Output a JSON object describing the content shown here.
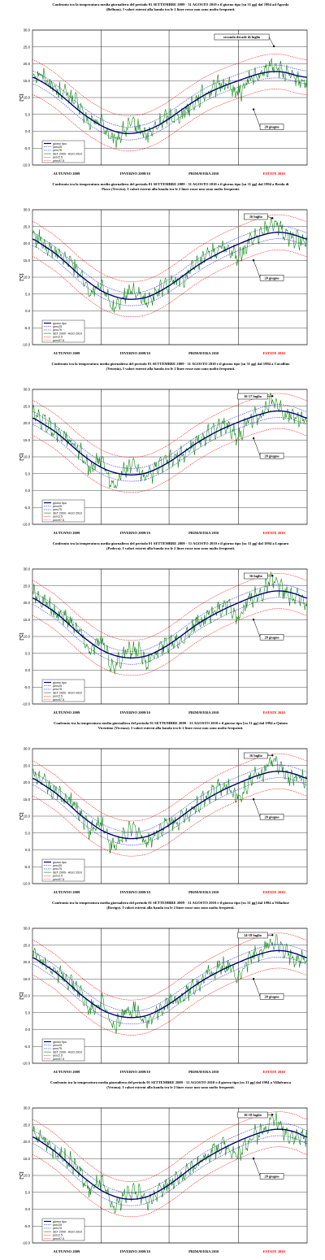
{
  "colors": {
    "giorno_tipo": "#000080",
    "perc25_75": "#3333ff",
    "set": "#008000",
    "perc2_97": "#ff0000",
    "estate_label": "#ff0000",
    "grid": "#000000"
  },
  "chart_data": [
    {
      "type": "line",
      "title_lines": [
        "Confronto tra la temperatura media giornaliera del periodo 01 SETTEMBRE 2009 - 31 AGOSTO 2010 e il giorno tipo [su 31 gg] dal 1994 ad Agordo",
        "(Belluno). I valori esterni alla banda tra le 2 linee rosse non sono molto frequenti."
      ],
      "ylabel": "[°C]",
      "ylim": [
        -10,
        30
      ],
      "yticks": [
        "30.0",
        "25.0",
        "20.0",
        "15.0",
        "10.0",
        "5.0",
        "0.0",
        "-5.0",
        "-10.0"
      ],
      "ytick_values": [
        30,
        25,
        20,
        15,
        10,
        5,
        0,
        -5,
        -10
      ],
      "seasons": [
        "AUTUNNO 2009",
        "INVERNO 2009/10",
        "PRIMAVERA 2010",
        "ESTATE 2010"
      ],
      "legend": [
        "giorno tipo",
        "perc25",
        "perc75",
        "SET 2009 - AGO 2010",
        "perc2.5",
        "perc97.5"
      ],
      "annotations": [
        {
          "text": "seconda decade di luglio",
          "day": 320,
          "value": 25.2
        },
        {
          "text": "20 giugno",
          "day": 293,
          "value": 6.5
        }
      ],
      "series": [
        {
          "name": "giorno tipo",
          "values": [
            16.0,
            14.3,
            12.0,
            9.2,
            6.3,
            3.8,
            1.7,
            0.2,
            -0.6,
            -0.5,
            0.3,
            1.8,
            3.9,
            6.3,
            8.6,
            10.7,
            12.4,
            13.8,
            15.0,
            16.2,
            17.2,
            17.7,
            17.5,
            16.6,
            16.0
          ]
        },
        {
          "name": "SET 2009 - AGO 2010",
          "values": [
            17.0,
            16.2,
            12.5,
            11.0,
            7.6,
            2.3,
            3.1,
            -3.0,
            0.2,
            1.8,
            -1.2,
            2.0,
            4.5,
            5.1,
            8.5,
            11.0,
            13.2,
            14.0,
            11.2,
            15.6,
            16.5,
            19.8,
            17.0,
            15.4,
            14.7
          ]
        }
      ]
    },
    {
      "type": "line",
      "title_lines": [
        "Confronto tra la temperatura media giornaliera del periodo 01 SETTEMBRE 2009 - 31 AGOSTO 2010 e il giorno tipo [su 31 gg] dal 1994 a Breda di",
        "Piave (Treviso). I valori esterni alla banda tra le 2 linee rosse non sono molto frequenti."
      ],
      "ylabel": "[°C]",
      "ylim": [
        -10,
        30
      ],
      "yticks": [
        "30.0",
        "25.0",
        "20.0",
        "15.0",
        "10.0",
        "5.0",
        "0.0",
        "-5.0",
        "-10.0"
      ],
      "ytick_values": [
        30,
        25,
        20,
        15,
        10,
        5,
        0,
        -5,
        -10
      ],
      "seasons": [
        "AUTUNNO 2009",
        "INVERNO 2009/10",
        "PRIMAVERA 2010",
        "ESTATE 2010"
      ],
      "legend": [
        "giorno tipo",
        "perc25",
        "perc75",
        "SET 2009 - AGO 2010",
        "perc2.5",
        "perc97.5"
      ],
      "annotations": [
        {
          "text": "16 luglio",
          "day": 318,
          "value": 27.5
        },
        {
          "text": "20 giugno",
          "day": 293,
          "value": 15.0
        }
      ],
      "series": [
        {
          "name": "giorno tipo",
          "values": [
            21.3,
            19.3,
            17.0,
            14.1,
            11.0,
            8.3,
            6.0,
            4.5,
            3.6,
            3.5,
            4.1,
            5.6,
            7.6,
            10.0,
            12.5,
            14.7,
            16.6,
            18.3,
            19.8,
            21.2,
            22.4,
            23.2,
            23.2,
            22.4,
            21.3
          ]
        },
        {
          "name": "SET 2009 - AGO 2010",
          "values": [
            22.5,
            20.0,
            17.1,
            15.0,
            12.0,
            6.0,
            8.2,
            1.0,
            4.5,
            6.0,
            2.6,
            5.7,
            8.0,
            9.2,
            12.3,
            15.2,
            17.6,
            18.5,
            15.8,
            20.8,
            22.5,
            26.3,
            22.8,
            21.3,
            20.9
          ]
        }
      ]
    },
    {
      "type": "line",
      "title_lines": [
        "Confronto tra la temperatura media giornaliera del periodo 01 SETTEMBRE 2009 - 31 AGOSTO 2010 e il giorno tipo [su 31 gg] dal 1994 a Cavallino",
        "(Venezia). I valori esterni alla banda tra le 2 linee rosse non sono molto frequenti."
      ],
      "ylabel": "[°C]",
      "ylim": [
        -10,
        30
      ],
      "yticks": [
        "30.0",
        "25.0",
        "20.0",
        "15.0",
        "10.0",
        "5.0",
        "0.0",
        "-5.0",
        "-10.0"
      ],
      "ytick_values": [
        30,
        25,
        20,
        15,
        10,
        5,
        0,
        -5,
        -10
      ],
      "seasons": [
        "AUTUNNO 2009",
        "INVERNO 2009/10",
        "PRIMAVERA 2010",
        "ESTATE 2010"
      ],
      "legend": [
        "giorno tipo",
        "perc25",
        "perc75",
        "SET 2009 - AGO 2010",
        "perc2.5",
        "perc97.5"
      ],
      "annotations": [
        {
          "text": "16-17 luglio",
          "day": 318,
          "value": 28.0
        },
        {
          "text": "20 giugno",
          "day": 293,
          "value": 15.5
        }
      ],
      "series": [
        {
          "name": "giorno tipo",
          "values": [
            21.5,
            19.6,
            17.4,
            14.6,
            11.6,
            9.0,
            6.9,
            5.5,
            4.8,
            4.7,
            5.3,
            6.7,
            8.6,
            10.9,
            13.3,
            15.4,
            17.3,
            18.9,
            20.3,
            21.6,
            22.7,
            23.5,
            23.5,
            22.7,
            21.5
          ]
        },
        {
          "name": "SET 2009 - AGO 2010",
          "values": [
            22.7,
            20.3,
            17.5,
            15.4,
            12.5,
            6.8,
            9.1,
            2.0,
            5.7,
            7.2,
            3.8,
            6.9,
            9.0,
            10.2,
            13.2,
            16.0,
            18.3,
            19.1,
            16.3,
            21.2,
            22.8,
            26.6,
            23.1,
            21.6,
            21.1
          ]
        }
      ]
    },
    {
      "type": "line",
      "title_lines": [
        "Confronto tra la temperatura media giornaliera del periodo 01 SETTEMBRE 2009 - 31 AGOSTO 2010 e il giorno tipo [su 31 gg] dal 1994 a Legnaro",
        "(Padova). I valori esterni alla banda tra le 2 linee rosse non sono molto frequenti."
      ],
      "ylabel": "[°C]",
      "ylim": [
        -10,
        30
      ],
      "yticks": [
        "30.0",
        "25.0",
        "20.0",
        "15.0",
        "10.0",
        "5.0",
        "0.0",
        "-5.0",
        "-10.0"
      ],
      "ytick_values": [
        30,
        25,
        20,
        15,
        10,
        5,
        0,
        -5,
        -10
      ],
      "seasons": [
        "AUTUNNO 2009",
        "INVERNO 2009/10",
        "PRIMAVERA 2010",
        "ESTATE 2010"
      ],
      "legend": [
        "giorno tipo",
        "perc25",
        "perc75",
        "SET 2009 - AGO 2010",
        "perc2.5",
        "perc97.5"
      ],
      "annotations": [
        {
          "text": "16 luglio",
          "day": 318,
          "value": 28.0
        },
        {
          "text": "20 giugno",
          "day": 293,
          "value": 15.0
        }
      ],
      "series": [
        {
          "name": "giorno tipo",
          "values": [
            21.4,
            19.4,
            17.1,
            14.2,
            11.1,
            8.4,
            6.1,
            4.6,
            3.8,
            3.7,
            4.3,
            5.8,
            7.8,
            10.2,
            12.7,
            14.9,
            16.8,
            18.5,
            20.0,
            21.4,
            22.6,
            23.4,
            23.4,
            22.6,
            21.4
          ]
        },
        {
          "name": "SET 2009 - AGO 2010",
          "values": [
            22.6,
            20.1,
            17.2,
            15.1,
            12.1,
            6.1,
            8.3,
            1.2,
            4.7,
            6.2,
            2.8,
            5.9,
            8.2,
            9.4,
            12.5,
            15.4,
            17.8,
            18.7,
            16.0,
            21.0,
            22.7,
            26.5,
            23.0,
            21.5,
            21.0
          ]
        }
      ]
    },
    {
      "type": "line",
      "title_lines": [
        "Confronto tra la temperatura media giornaliera del periodo 01 SETTEMBRE 2009 - 31 AGOSTO 2010 e il giorno tipo [su 31 gg] dal 1994 a Quinto",
        "Vicentino (Vicenza). I valori esterni alla banda tra le 2 linee rosse non sono molto frequenti."
      ],
      "ylabel": "[°C]",
      "ylim": [
        -10,
        30
      ],
      "yticks": [
        "30.0",
        "25.0",
        "20.0",
        "15.0",
        "10.0",
        "5.0",
        "0.0",
        "-5.0",
        "-10.0"
      ],
      "ytick_values": [
        30,
        25,
        20,
        15,
        10,
        5,
        0,
        -5,
        -10
      ],
      "seasons": [
        "AUTUNNO 2009",
        "INVERNO 2009/10",
        "PRIMAVERA 2010",
        "ESTATE 2010"
      ],
      "legend": [
        "giorno tipo",
        "perc25",
        "perc75",
        "SET 2009 - AGO 2010",
        "perc2.5",
        "perc97.5"
      ],
      "annotations": [
        {
          "text": "16 luglio",
          "day": 318,
          "value": 28.0
        },
        {
          "text": "20 giugno",
          "day": 293,
          "value": 15.0
        }
      ],
      "series": [
        {
          "name": "giorno tipo",
          "values": [
            21.2,
            19.2,
            16.9,
            14.0,
            10.9,
            8.2,
            5.9,
            4.4,
            3.5,
            3.4,
            4.0,
            5.5,
            7.5,
            9.9,
            12.4,
            14.6,
            16.6,
            18.3,
            19.8,
            21.2,
            22.4,
            23.2,
            23.2,
            22.4,
            21.2
          ]
        },
        {
          "name": "SET 2009 - AGO 2010",
          "values": [
            22.4,
            19.9,
            17.0,
            14.9,
            11.9,
            5.9,
            8.1,
            0.8,
            4.4,
            5.9,
            2.5,
            5.6,
            7.9,
            9.1,
            12.2,
            15.1,
            17.6,
            18.5,
            15.8,
            20.8,
            22.5,
            26.3,
            22.8,
            21.3,
            20.8
          ]
        }
      ]
    },
    {
      "type": "line",
      "title_lines": [
        "Confronto tra la temperatura media giornaliera del periodo 01 SETTEMBRE 2009 - 31 AGOSTO 2010 e il giorno tipo [su 31 gg] dal 1994 a Villadose",
        "(Rovigo). I valori esterni alla banda tra le 2 linee rosse non sono molto frequenti."
      ],
      "ylabel": "[°C]",
      "ylim": [
        -10,
        30
      ],
      "yticks": [
        "30.0",
        "25.0",
        "20.0",
        "15.0",
        "10.0",
        "5.0",
        "0.0",
        "-5.0",
        "-10.0"
      ],
      "ytick_values": [
        30,
        25,
        20,
        15,
        10,
        5,
        0,
        -5,
        -10
      ],
      "seasons": [
        "AUTUNNO 2009",
        "INVERNO 2009/10",
        "PRIMAVERA 2010",
        "ESTATE 2010"
      ],
      "legend": [
        "giorno tipo",
        "perc25",
        "perc75",
        "SET 2009 - AGO 2010",
        "perc2.5",
        "perc97.5"
      ],
      "annotations": [
        {
          "text": "14-18 luglio",
          "day": 318,
          "value": 28.0
        },
        {
          "text": "20 giugno",
          "day": 293,
          "value": 15.0
        }
      ],
      "series": [
        {
          "name": "giorno tipo",
          "values": [
            21.3,
            19.3,
            17.0,
            14.1,
            11.0,
            8.3,
            6.0,
            4.5,
            3.7,
            3.6,
            4.2,
            5.7,
            7.7,
            10.1,
            12.6,
            14.8,
            16.7,
            18.4,
            19.9,
            21.3,
            22.5,
            23.3,
            23.3,
            22.5,
            21.3
          ]
        },
        {
          "name": "SET 2009 - AGO 2010",
          "values": [
            22.5,
            20.0,
            17.1,
            15.0,
            12.0,
            6.0,
            8.2,
            1.0,
            4.6,
            6.1,
            2.7,
            5.8,
            8.1,
            9.3,
            12.4,
            15.3,
            17.7,
            18.6,
            15.9,
            20.9,
            22.6,
            26.4,
            22.9,
            21.4,
            20.9
          ]
        }
      ]
    },
    {
      "type": "line",
      "title_lines": [
        "Confronto tra la temperatura media giornaliera del periodo 01 SETTEMBRE 2009 - 31 AGOSTO 2010 e il giorno tipo [su 31 gg] dal 1994 a Villafranca",
        "(Verona). I valori esterni alla banda tra le 2 linee rosse non sono molto frequenti."
      ],
      "ylabel": "[°C]",
      "ylim": [
        -10,
        30
      ],
      "yticks": [
        "30.0",
        "25.0",
        "20.0",
        "15.0",
        "10.0",
        "5.0",
        "0.0",
        "-5.0",
        "-10.0"
      ],
      "ytick_values": [
        30,
        25,
        20,
        15,
        10,
        5,
        0,
        -5,
        -10
      ],
      "seasons": [
        "AUTUNNO 2009",
        "INVERNO 2009/10",
        "PRIMAVERA 2010",
        "ESTATE 2010"
      ],
      "legend": [
        "giorno tipo",
        "perc25",
        "perc75",
        "SET 2009 - AGO 2010",
        "perc2.5",
        "perc97.5"
      ],
      "annotations": [
        {
          "text": "16-18 luglio",
          "day": 318,
          "value": 28.0
        },
        {
          "text": "20 giugno",
          "day": 293,
          "value": 15.0
        }
      ],
      "series": [
        {
          "name": "giorno tipo",
          "values": [
            21.4,
            19.4,
            17.0,
            14.0,
            10.8,
            8.0,
            5.6,
            4.0,
            3.1,
            3.0,
            3.7,
            5.3,
            7.4,
            9.9,
            12.5,
            14.8,
            16.8,
            18.6,
            20.2,
            21.6,
            22.8,
            23.6,
            23.6,
            22.8,
            21.4
          ]
        },
        {
          "name": "SET 2009 - AGO 2010",
          "values": [
            22.6,
            20.1,
            17.1,
            14.9,
            11.8,
            5.7,
            7.9,
            0.4,
            4.0,
            5.5,
            2.2,
            5.4,
            7.8,
            9.1,
            12.3,
            15.3,
            17.8,
            18.8,
            16.1,
            21.2,
            22.9,
            26.7,
            23.2,
            21.6,
            21.1
          ]
        }
      ]
    }
  ]
}
